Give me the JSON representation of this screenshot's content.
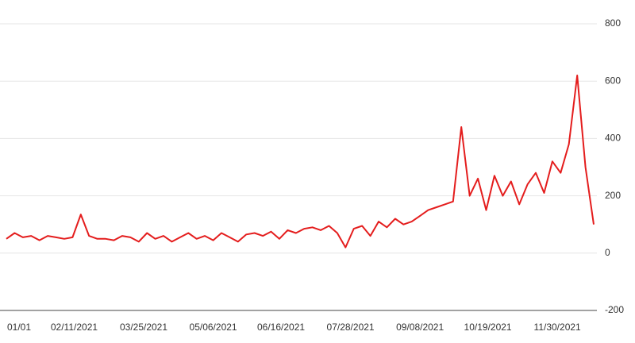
{
  "chart_data": {
    "type": "line",
    "x": [
      "2021-01-01",
      "2021-01-06",
      "2021-01-11",
      "2021-01-16",
      "2021-01-21",
      "2021-01-26",
      "2021-01-31",
      "2021-02-05",
      "2021-02-10",
      "2021-02-15",
      "2021-02-20",
      "2021-02-25",
      "2021-03-02",
      "2021-03-07",
      "2021-03-12",
      "2021-03-17",
      "2021-03-22",
      "2021-03-27",
      "2021-04-01",
      "2021-04-06",
      "2021-04-11",
      "2021-04-16",
      "2021-04-21",
      "2021-04-26",
      "2021-05-01",
      "2021-05-06",
      "2021-05-11",
      "2021-05-16",
      "2021-05-21",
      "2021-05-26",
      "2021-05-31",
      "2021-06-05",
      "2021-06-10",
      "2021-06-15",
      "2021-06-20",
      "2021-06-25",
      "2021-06-30",
      "2021-07-05",
      "2021-07-10",
      "2021-07-15",
      "2021-07-20",
      "2021-07-25",
      "2021-07-30",
      "2021-08-04",
      "2021-08-09",
      "2021-08-14",
      "2021-08-19",
      "2021-08-24",
      "2021-08-29",
      "2021-09-03",
      "2021-09-08",
      "2021-09-13",
      "2021-09-18",
      "2021-09-23",
      "2021-09-28",
      "2021-10-03",
      "2021-10-08",
      "2021-10-13",
      "2021-10-18",
      "2021-10-23",
      "2021-10-28",
      "2021-11-02",
      "2021-11-07",
      "2021-11-12",
      "2021-11-17",
      "2021-11-22",
      "2021-11-27",
      "2021-12-02",
      "2021-12-07",
      "2021-12-12",
      "2021-12-17",
      "2021-12-22"
    ],
    "series": [
      {
        "color": "#e41d1d",
        "values": [
          50,
          70,
          55,
          60,
          45,
          60,
          55,
          50,
          55,
          135,
          60,
          50,
          50,
          45,
          60,
          55,
          40,
          70,
          50,
          60,
          40,
          55,
          70,
          50,
          60,
          45,
          70,
          55,
          40,
          65,
          70,
          60,
          75,
          50,
          80,
          70,
          85,
          90,
          80,
          95,
          70,
          20,
          85,
          95,
          60,
          110,
          90,
          120,
          100,
          110,
          130,
          150,
          160,
          170,
          180,
          440,
          200,
          260,
          150,
          270,
          200,
          250,
          170,
          240,
          280,
          210,
          320,
          280,
          380,
          620,
          300,
          100
        ]
      }
    ],
    "xlim": [
      "2021-01-01",
      "2021-12-22"
    ],
    "xticks": [
      {
        "value": "2021-01-01",
        "label": "01/01"
      },
      {
        "value": "2021-02-11",
        "label": "02/11/2021"
      },
      {
        "value": "2021-03-25",
        "label": "03/25/2021"
      },
      {
        "value": "2021-05-06",
        "label": "05/06/2021"
      },
      {
        "value": "2021-06-16",
        "label": "06/16/2021"
      },
      {
        "value": "2021-07-28",
        "label": "07/28/2021"
      },
      {
        "value": "2021-09-08",
        "label": "09/08/2021"
      },
      {
        "value": "2021-10-19",
        "label": "10/19/2021"
      },
      {
        "value": "2021-11-30",
        "label": "11/30/2021"
      }
    ],
    "ylim": [
      -200,
      800
    ],
    "yticks": [
      -200,
      0,
      200,
      400,
      600,
      800
    ],
    "grid": true
  }
}
